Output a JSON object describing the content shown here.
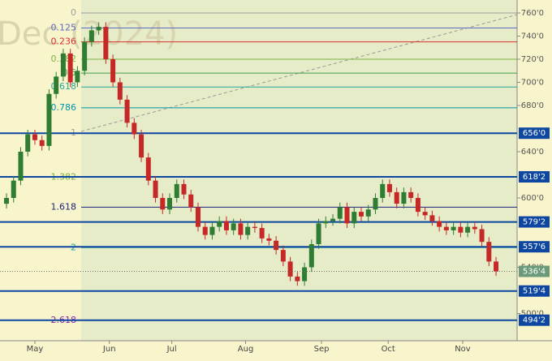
{
  "chart_data": {
    "type": "candlestick",
    "watermark": "Dec (2024)",
    "x": [
      0,
      1,
      2,
      3,
      4,
      5,
      6,
      7,
      8,
      9,
      10,
      11,
      12,
      13,
      14,
      15,
      16,
      17,
      18,
      19,
      20,
      21,
      22,
      23,
      24,
      25,
      26,
      27,
      28,
      29,
      30,
      31,
      32,
      33,
      34,
      35,
      36,
      37,
      38,
      39,
      40,
      41,
      42,
      43,
      44,
      45,
      46,
      47,
      48,
      49,
      50,
      51,
      52,
      53,
      54,
      55,
      56,
      57,
      58,
      59,
      60,
      61,
      62,
      63,
      64,
      65,
      66,
      67,
      68,
      69
    ],
    "open": [
      595,
      600,
      615,
      640,
      655,
      650,
      645,
      690,
      705,
      725,
      700,
      710,
      735,
      745,
      748,
      720,
      700,
      685,
      665,
      655,
      635,
      615,
      600,
      590,
      600,
      612,
      603,
      592,
      575,
      568,
      575,
      580,
      572,
      578,
      568,
      575,
      574,
      565,
      563,
      555,
      545,
      532,
      528,
      540,
      560,
      578,
      580,
      582,
      592,
      578,
      588,
      584,
      590,
      600,
      612,
      605,
      595,
      605,
      600,
      588,
      585,
      580,
      575,
      572,
      575,
      570,
      575,
      573,
      562,
      545
    ],
    "high": [
      604,
      619,
      644,
      659,
      659,
      654,
      694,
      709,
      729,
      729,
      714,
      739,
      749,
      752,
      752,
      724,
      704,
      689,
      669,
      659,
      639,
      619,
      604,
      604,
      616,
      616,
      607,
      596,
      579,
      579,
      584,
      584,
      582,
      582,
      579,
      579,
      578,
      569,
      567,
      559,
      549,
      536,
      544,
      564,
      582,
      584,
      586,
      596,
      596,
      592,
      592,
      594,
      604,
      616,
      616,
      609,
      609,
      609,
      604,
      592,
      589,
      584,
      579,
      579,
      579,
      579,
      579,
      577,
      566,
      549
    ],
    "low": [
      591,
      596,
      611,
      636,
      646,
      641,
      641,
      686,
      701,
      696,
      696,
      706,
      731,
      741,
      716,
      696,
      681,
      661,
      651,
      631,
      611,
      596,
      586,
      586,
      596,
      599,
      588,
      571,
      564,
      564,
      571,
      568,
      568,
      564,
      564,
      570,
      561,
      559,
      551,
      541,
      528,
      524,
      524,
      536,
      556,
      574,
      576,
      578,
      574,
      574,
      580,
      580,
      586,
      596,
      601,
      591,
      591,
      596,
      584,
      581,
      576,
      571,
      568,
      568,
      566,
      566,
      569,
      558,
      541,
      532.5
    ],
    "close": [
      600,
      615,
      640,
      655,
      650,
      645,
      690,
      705,
      725,
      700,
      710,
      735,
      745,
      748,
      720,
      700,
      685,
      665,
      655,
      635,
      615,
      600,
      590,
      600,
      612,
      603,
      592,
      575,
      568,
      575,
      580,
      572,
      578,
      568,
      575,
      574,
      565,
      563,
      555,
      545,
      532,
      528,
      540,
      560,
      578,
      580,
      582,
      592,
      578,
      588,
      584,
      590,
      600,
      612,
      605,
      595,
      605,
      600,
      588,
      585,
      580,
      575,
      572,
      575,
      570,
      575,
      573,
      562,
      545,
      536.5
    ],
    "up_color": "#2e7d32",
    "down_color": "#c62828",
    "xlim": [
      -1,
      69.5
    ],
    "xticks": [
      {
        "value": 4,
        "label": "May"
      },
      {
        "value": 14.5,
        "label": "Jun"
      },
      {
        "value": 23.3,
        "label": "Jul"
      },
      {
        "value": 33.7,
        "label": "Aug"
      },
      {
        "value": 44.4,
        "label": "Sep"
      },
      {
        "value": 53.8,
        "label": "Oct"
      },
      {
        "value": 64.3,
        "label": "Nov"
      }
    ],
    "ylim": [
      475,
      770
    ],
    "yticks": [
      {
        "value": 760,
        "label": "760'0"
      },
      {
        "value": 740,
        "label": "740'0"
      },
      {
        "value": 720,
        "label": "720'0"
      },
      {
        "value": 700,
        "label": "700'0"
      },
      {
        "value": 680,
        "label": "680'0"
      },
      {
        "value": 640,
        "label": "640'0"
      },
      {
        "value": 600,
        "label": "600'0"
      },
      {
        "value": 540,
        "label": "540'0"
      },
      {
        "value": 500,
        "label": "500'0"
      }
    ],
    "fib_levels": [
      {
        "label": "0",
        "value": 760,
        "color": "#9e9e9e"
      },
      {
        "label": "0.125",
        "value": 747,
        "color": "#5c6bc0"
      },
      {
        "label": "0.236",
        "value": 735,
        "color": "#d32f2f"
      },
      {
        "label": "0.382",
        "value": 720,
        "color": "#7cb342"
      },
      {
        "label": "0.5",
        "value": 708,
        "color": "#43a047"
      },
      {
        "label": "0.618",
        "value": 696,
        "color": "#26a69a"
      },
      {
        "label": "0.786",
        "value": 678,
        "color": "#0097a7"
      },
      {
        "label": "1",
        "value": 656,
        "color": "#9e9e9e"
      },
      {
        "label": "1.382",
        "value": 618,
        "color": "#7cb342"
      },
      {
        "label": "1.618",
        "value": 592,
        "color": "#1a237e"
      },
      {
        "label": "2",
        "value": 557,
        "color": "#26a69a"
      },
      {
        "label": "2.618",
        "value": 494,
        "color": "#8e24aa"
      }
    ],
    "levels": [
      {
        "value": 656,
        "label": "656'0"
      },
      {
        "value": 618.25,
        "label": "618'2"
      },
      {
        "value": 579.25,
        "label": "579'2"
      },
      {
        "value": 557.75,
        "label": "557'6"
      },
      {
        "value": 519.5,
        "label": "519'4"
      },
      {
        "value": 494.25,
        "label": "494'2"
      }
    ],
    "level_color": "#0d47a1",
    "last_price": {
      "value": 536.5,
      "label": "536'4",
      "color": "#6b9a7a"
    }
  }
}
